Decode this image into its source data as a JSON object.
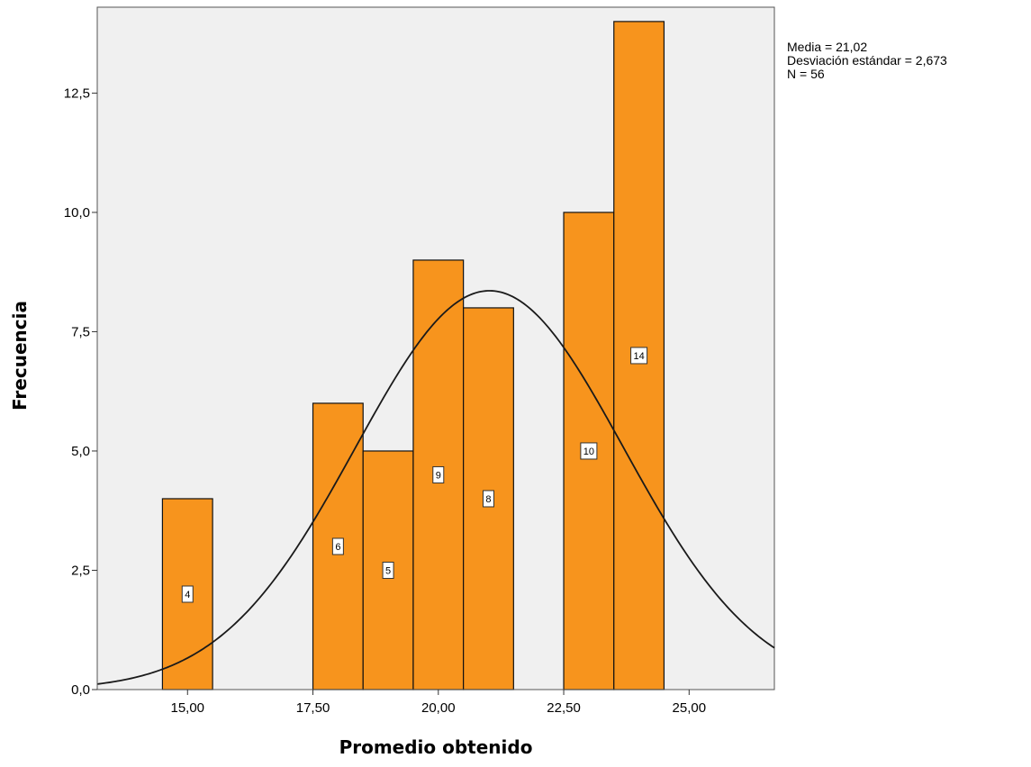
{
  "chart_data": {
    "type": "bar",
    "subtype": "histogram",
    "xlabel": "Promedio obtenido",
    "ylabel": "Frecuencia",
    "xlim": [
      13.2,
      26.7
    ],
    "ylim": [
      0,
      14.3
    ],
    "x_ticks": [
      15,
      17.5,
      20,
      22.5,
      25
    ],
    "x_tick_labels": [
      "15,00",
      "17,50",
      "20,00",
      "22,50",
      "25,00"
    ],
    "y_ticks": [
      0,
      2.5,
      5,
      7.5,
      10,
      12.5
    ],
    "y_tick_labels": [
      "0,0",
      "2,5",
      "5,0",
      "7,5",
      "10,0",
      "12,5"
    ],
    "bins": [
      {
        "start": 14.5,
        "end": 15.5,
        "count": 4
      },
      {
        "start": 17.5,
        "end": 18.5,
        "count": 6
      },
      {
        "start": 18.5,
        "end": 19.5,
        "count": 5
      },
      {
        "start": 19.5,
        "end": 20.5,
        "count": 9
      },
      {
        "start": 20.5,
        "end": 21.5,
        "count": 8
      },
      {
        "start": 22.5,
        "end": 23.5,
        "count": 10
      },
      {
        "start": 23.5,
        "end": 24.5,
        "count": 14
      }
    ],
    "normal_curve": {
      "mean": 21.02,
      "sd": 2.673,
      "n": 56,
      "bin_width": 1
    },
    "bar_color": "#f7941d",
    "plot_background": "#f0f0f0",
    "grid": false
  },
  "stats": {
    "mean": "Media = 21,02",
    "sd": "Desviación estándar = 2,673",
    "n": "N = 56"
  }
}
